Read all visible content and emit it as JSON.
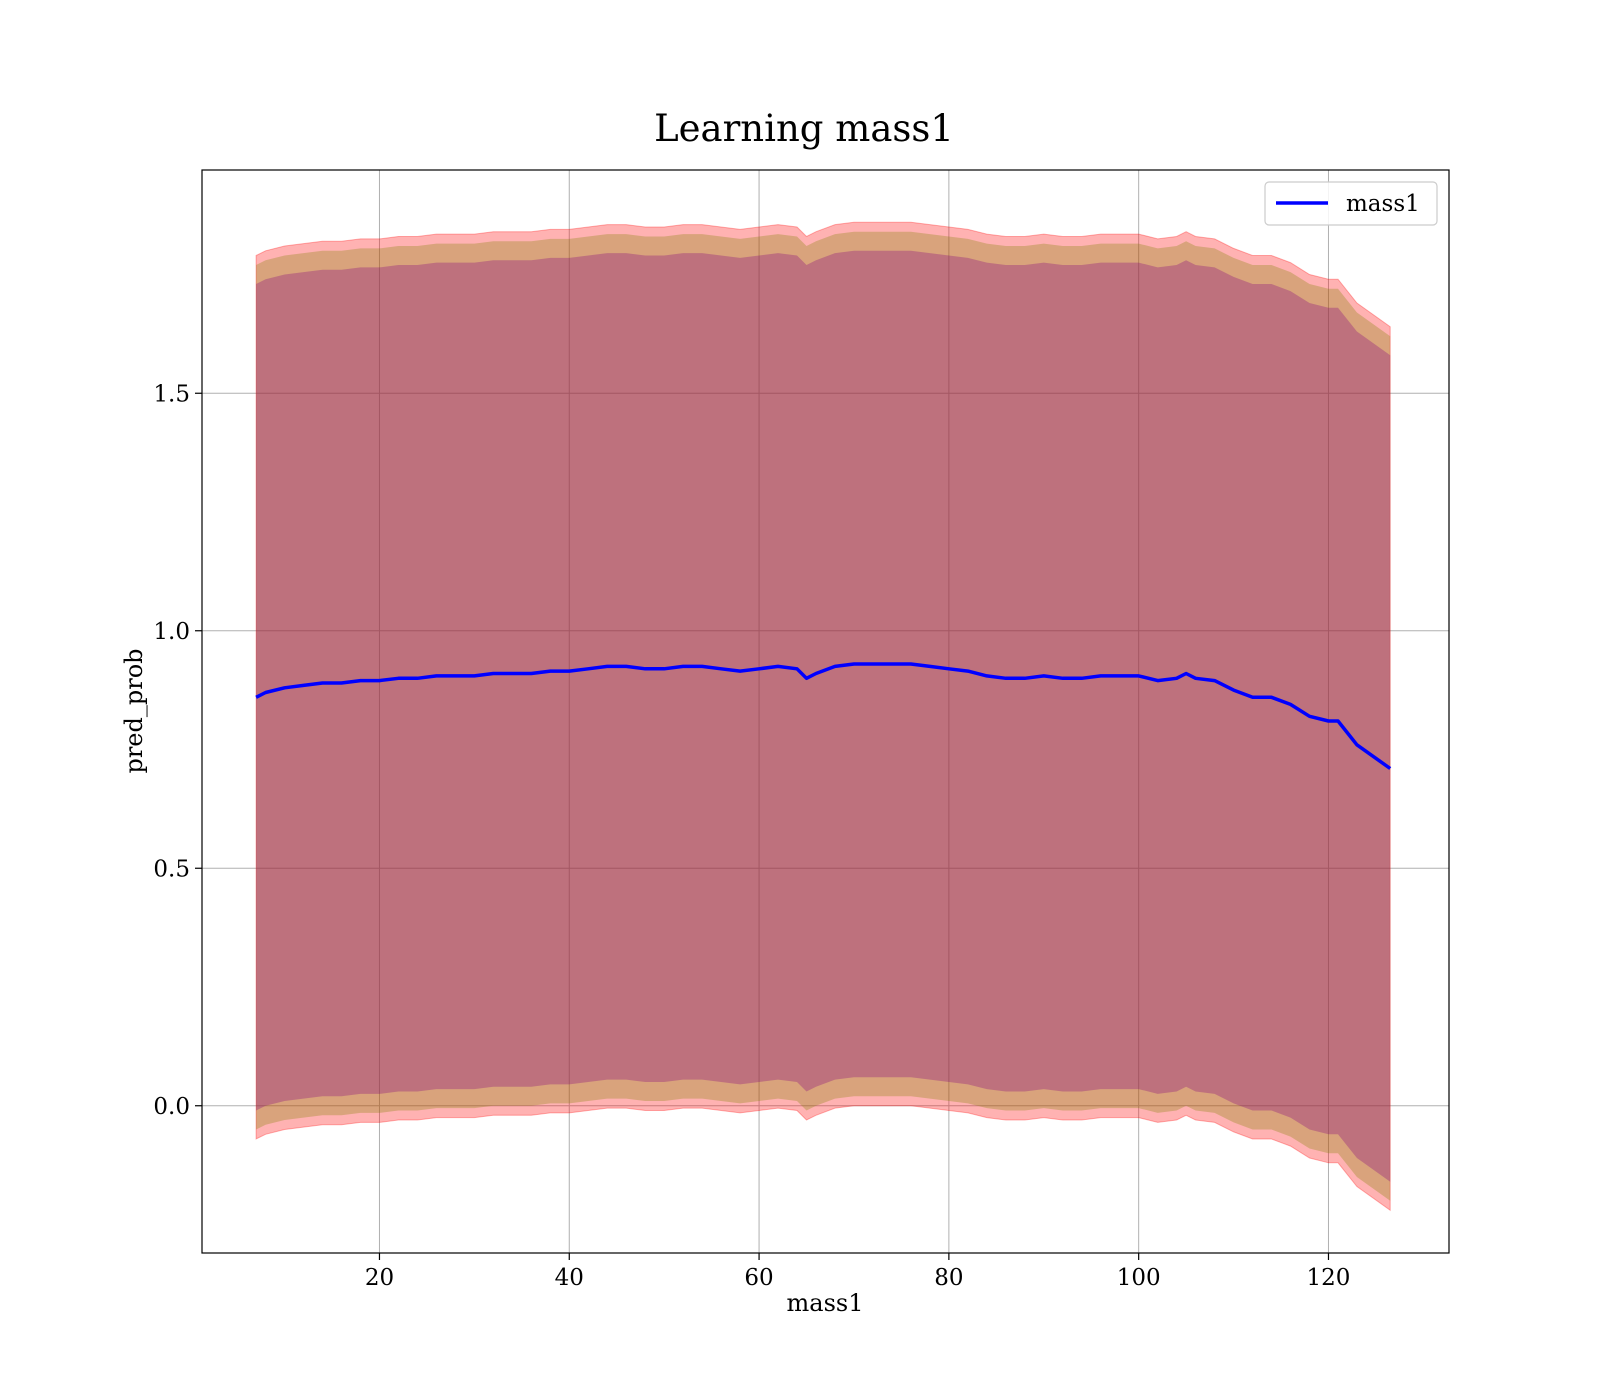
{
  "chart_data": {
    "type": "area",
    "title": "Learning mass1",
    "xlabel": "mass1",
    "ylabel": "pred_prob",
    "xlim": [
      1.3,
      132.7
    ],
    "ylim": [
      -0.31,
      1.97
    ],
    "xticks": [
      20,
      40,
      60,
      80,
      100,
      120
    ],
    "yticks": [
      0.0,
      0.5,
      1.0,
      1.5
    ],
    "xtick_labels": [
      "20",
      "40",
      "60",
      "80",
      "100",
      "120"
    ],
    "ytick_labels": [
      "0.0",
      "0.5",
      "1.0",
      "1.5"
    ],
    "grid": true,
    "legend": {
      "position": "top-right",
      "entries": [
        "mass1"
      ]
    },
    "colors": {
      "line": "#0000ff",
      "band_outer": "#ff0000",
      "band_mid": "#808000",
      "band_inner": "#800080"
    },
    "series": [
      {
        "name": "mass1",
        "x": [
          7,
          8,
          10,
          12,
          14,
          16,
          18,
          20,
          22,
          24,
          26,
          28,
          30,
          32,
          34,
          36,
          38,
          40,
          42,
          44,
          46,
          48,
          50,
          52,
          54,
          56,
          58,
          60,
          62,
          64,
          65,
          66,
          68,
          70,
          72,
          74,
          76,
          78,
          80,
          82,
          84,
          86,
          88,
          90,
          92,
          94,
          96,
          98,
          100,
          102,
          104,
          105,
          106,
          108,
          110,
          112,
          114,
          116,
          118,
          120,
          121,
          123,
          126.5
        ],
        "y": [
          0.86,
          0.87,
          0.88,
          0.885,
          0.89,
          0.89,
          0.895,
          0.895,
          0.9,
          0.9,
          0.905,
          0.905,
          0.905,
          0.91,
          0.91,
          0.91,
          0.915,
          0.915,
          0.92,
          0.925,
          0.925,
          0.92,
          0.92,
          0.925,
          0.925,
          0.92,
          0.915,
          0.92,
          0.925,
          0.92,
          0.9,
          0.91,
          0.925,
          0.93,
          0.93,
          0.93,
          0.93,
          0.925,
          0.92,
          0.915,
          0.905,
          0.9,
          0.9,
          0.905,
          0.9,
          0.9,
          0.905,
          0.905,
          0.905,
          0.895,
          0.9,
          0.91,
          0.9,
          0.895,
          0.875,
          0.86,
          0.86,
          0.845,
          0.82,
          0.81,
          0.81,
          0.76,
          0.71
        ]
      }
    ],
    "bands": {
      "outer_half_width": 0.93,
      "mid_half_width": 0.91,
      "inner_half_width": 0.87
    }
  }
}
